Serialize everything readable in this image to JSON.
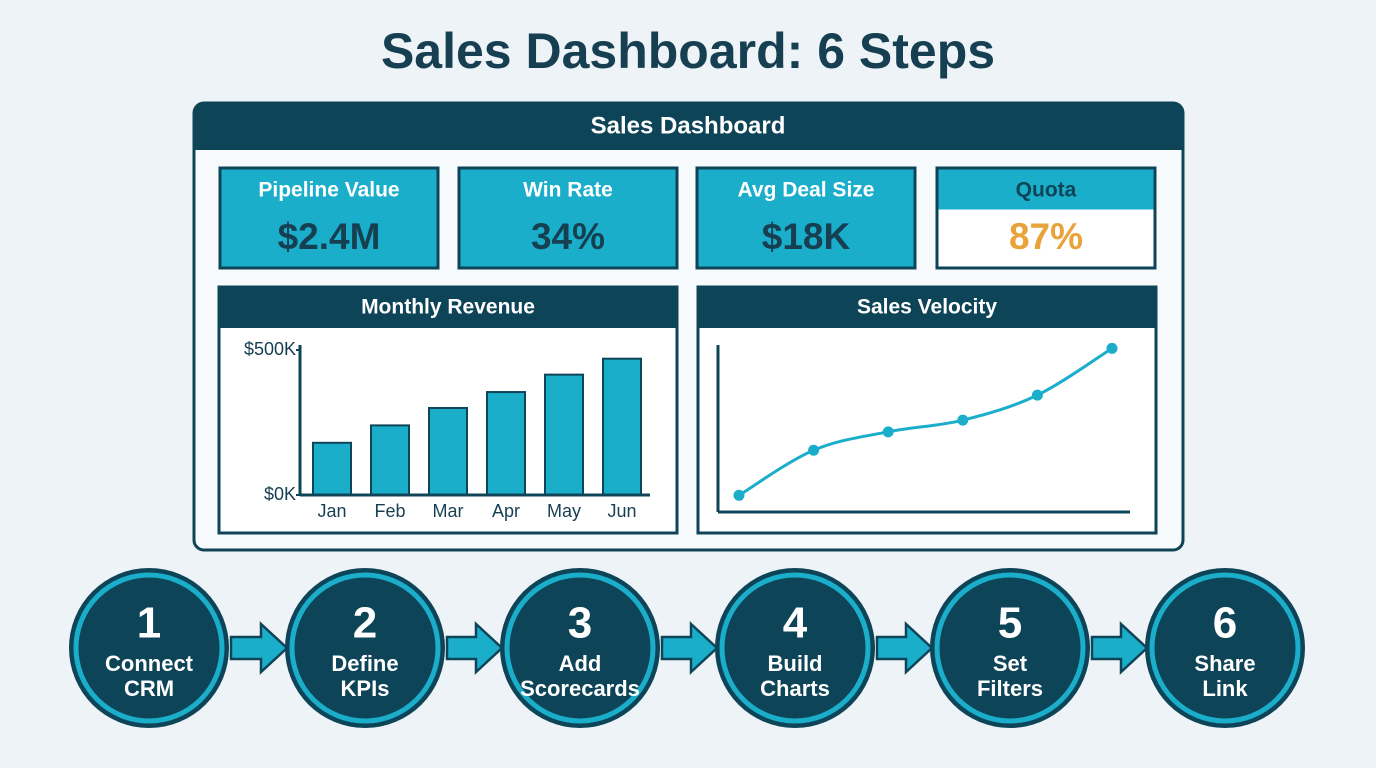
{
  "title": "Sales Dashboard: 6 Steps",
  "dashboard": {
    "title": "Sales Dashboard",
    "kpis": [
      {
        "label": "Pipeline Value",
        "value": "$2.4M"
      },
      {
        "label": "Win Rate",
        "value": "34%"
      },
      {
        "label": "Avg Deal Size",
        "value": "$18K"
      },
      {
        "label": "Quota",
        "value": "87%"
      }
    ]
  },
  "chart_data": [
    {
      "type": "bar",
      "title": "Monthly Revenue",
      "categories": [
        "Jan",
        "Feb",
        "Mar",
        "Apr",
        "May",
        "Jun"
      ],
      "values": [
        180,
        240,
        300,
        355,
        415,
        470
      ],
      "color": "#1aaecb",
      "ylim": [
        0,
        500
      ],
      "yticks": [
        {
          "value": 0,
          "label": "$0K"
        },
        {
          "value": 500,
          "label": "$500K"
        }
      ]
    },
    {
      "type": "line",
      "title": "Sales Velocity",
      "values": [
        10,
        37,
        48,
        55,
        70,
        98
      ],
      "color": "#1aaecb",
      "ylim": [
        0,
        100
      ]
    }
  ],
  "steps": [
    {
      "number": 1,
      "label": [
        "Connect",
        "CRM"
      ]
    },
    {
      "number": 2,
      "label": [
        "Define",
        "KPIs"
      ]
    },
    {
      "number": 3,
      "label": [
        "Add",
        "Scorecards"
      ]
    },
    {
      "number": 4,
      "label": [
        "Build",
        "Charts"
      ]
    },
    {
      "number": 5,
      "label": [
        "Set",
        "Filters"
      ]
    },
    {
      "number": 6,
      "label": [
        "Share",
        "Link"
      ]
    }
  ]
}
